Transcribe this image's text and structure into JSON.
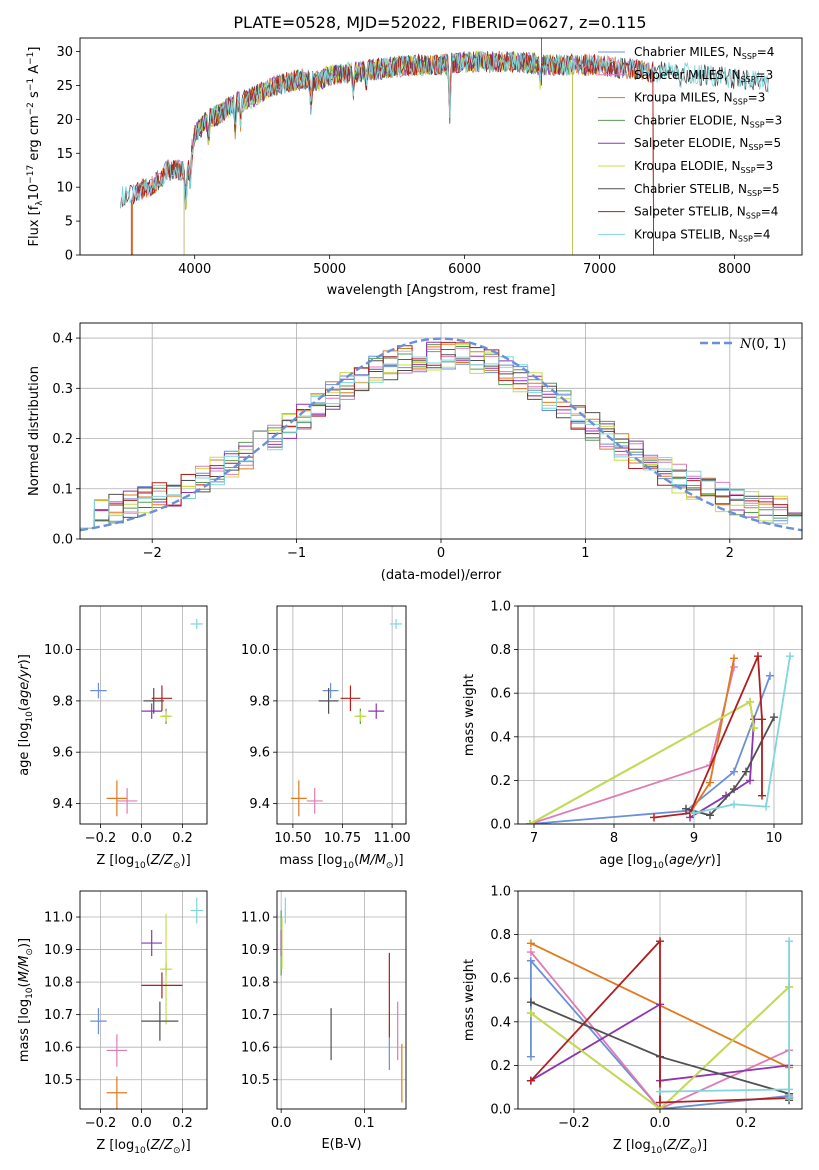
{
  "figure": {
    "title": "PLATE=0528, MJD=52022, FIBERID=0627, z=0.115"
  },
  "colors": {
    "Chabrier MILES": "#6b8fd8",
    "Salpeter MILES": "#e07cb4",
    "Kroupa MILES": "#e07a1e",
    "Chabrier ELODIE": "#5a9a5a",
    "Salpeter ELODIE": "#8e35b0",
    "Kroupa ELODIE": "#c8dc4a",
    "Chabrier STELIB": "#505050",
    "Salpeter STELIB": "#b01e1e",
    "Kroupa STELIB": "#7fd6dc",
    "normal": "#6b8fd8"
  },
  "chart_data": [
    {
      "id": "spectrum",
      "type": "line",
      "xlabel": "wavelength [Angstrom, rest frame]",
      "ylabel": "Flux [fλ10⁻¹⁷ erg cm⁻² s⁻¹ A⁻¹]",
      "xlim": [
        3150,
        8500
      ],
      "ylim": [
        0,
        32
      ],
      "xticks": [
        4000,
        5000,
        6000,
        7000,
        8000
      ],
      "yticks": [
        0,
        5,
        10,
        15,
        20,
        25,
        30
      ],
      "legend": "top-right",
      "legend_entries": [
        {
          "name": "Chabrier MILES, N",
          "sub": "SSP",
          "tail": "=4"
        },
        {
          "name": "Salpeter MILES, N",
          "sub": "SSP",
          "tail": "=3"
        },
        {
          "name": "Kroupa MILES, N",
          "sub": "SSP",
          "tail": "=3"
        },
        {
          "name": "Chabrier ELODIE, N",
          "sub": "SSP",
          "tail": "=3"
        },
        {
          "name": "Salpeter ELODIE, N",
          "sub": "SSP",
          "tail": "=5"
        },
        {
          "name": "Kroupa ELODIE, N",
          "sub": "SSP",
          "tail": "=3"
        },
        {
          "name": "Chabrier STELIB, N",
          "sub": "SSP",
          "tail": "=5"
        },
        {
          "name": "Salpeter STELIB, N",
          "sub": "SSP",
          "tail": "=4"
        },
        {
          "name": "Kroupa STELIB, N",
          "sub": "SSP",
          "tail": "=4"
        }
      ],
      "continuum": {
        "x": [
          3450,
          3600,
          3700,
          3800,
          3900,
          3950,
          4000,
          4100,
          4200,
          4300,
          4400,
          4500,
          4600,
          4700,
          4800,
          4900,
          5000,
          5200,
          5400,
          5600,
          5800,
          6000,
          6200,
          6400,
          6600,
          6800,
          7000,
          7200,
          7400,
          7600,
          7800,
          8000,
          8250
        ],
        "y": [
          8.5,
          9.5,
          10.5,
          12.5,
          12.5,
          12.0,
          18.0,
          20.0,
          21.0,
          22.5,
          23.0,
          24.0,
          25.0,
          25.5,
          26.0,
          25.5,
          26.5,
          27.0,
          27.5,
          28.0,
          28.0,
          28.5,
          28.5,
          28.5,
          28.0,
          28.0,
          28.0,
          27.5,
          27.0,
          27.0,
          26.5,
          26.0,
          25.5
        ]
      },
      "starts": {
        "Chabrier STELIB": 3450,
        "Kroupa STELIB": 3450,
        "Salpeter STELIB": 3530,
        "Kroupa ELODIE": 3920,
        "Chabrier MILES": 3540,
        "Salpeter MILES": 3540,
        "Kroupa MILES": 3540,
        "Chabrier ELODIE": 3920,
        "Salpeter ELODIE": 3920
      },
      "ends": {
        "Kroupa ELODIE": 6800,
        "Chabrier ELODIE": 6800,
        "Salpeter ELODIE": 6800,
        "Salpeter STELIB": 7400,
        "Kroupa MILES": 7400,
        "Chabrier MILES": 7400,
        "Salpeter MILES": 7400,
        "Chabrier STELIB": 8250,
        "Kroupa STELIB": 8250
      }
    },
    {
      "id": "residuals",
      "type": "bar",
      "xlabel": "(data-model)/error",
      "ylabel": "Normed distribution",
      "xlim": [
        -2.5,
        2.5
      ],
      "ylim": [
        0,
        0.43
      ],
      "xticks": [
        -2,
        -1,
        0,
        1,
        2
      ],
      "yticks": [
        0.0,
        0.1,
        0.2,
        0.3,
        0.4
      ],
      "grid": true,
      "bins": 50,
      "legend": "top-right",
      "normal_label": "N(0, 1)"
    },
    {
      "id": "age_vs_Z",
      "type": "scatter",
      "xlabel": "Z [log10(Z/Z⊙)]",
      "ylabel": "age [log10(age/yr)]",
      "xlim": [
        -0.3,
        0.32
      ],
      "ylim": [
        9.32,
        10.17
      ],
      "xticks": [
        -0.2,
        0.0,
        0.2
      ],
      "yticks": [
        9.4,
        9.6,
        9.8,
        10.0
      ],
      "grid": true,
      "points": [
        {
          "model": "Chabrier MILES",
          "x": -0.21,
          "xerr": 0.04,
          "y": 9.84,
          "yerr": 0.03
        },
        {
          "model": "Salpeter MILES",
          "x": -0.07,
          "xerr": 0.05,
          "y": 9.41,
          "yerr": 0.05
        },
        {
          "model": "Kroupa MILES",
          "x": -0.12,
          "xerr": 0.05,
          "y": 9.42,
          "yerr": 0.07
        },
        {
          "model": "Chabrier ELODIE",
          "x": 0.12,
          "xerr": 0.02,
          "y": 9.74,
          "yerr": 0.03
        },
        {
          "model": "Salpeter ELODIE",
          "x": 0.05,
          "xerr": 0.05,
          "y": 9.76,
          "yerr": 0.03
        },
        {
          "model": "Kroupa ELODIE",
          "x": 0.12,
          "xerr": 0.03,
          "y": 9.74,
          "yerr": 0.02
        },
        {
          "model": "Chabrier STELIB",
          "x": 0.06,
          "xerr": 0.05,
          "y": 9.8,
          "yerr": 0.05
        },
        {
          "model": "Salpeter STELIB",
          "x": 0.1,
          "xerr": 0.05,
          "y": 9.81,
          "yerr": 0.05
        },
        {
          "model": "Kroupa STELIB",
          "x": 0.27,
          "xerr": 0.03,
          "y": 10.1,
          "yerr": 0.02
        }
      ]
    },
    {
      "id": "age_vs_mass",
      "type": "scatter",
      "xlabel": "mass [log10(M/M⊙)]",
      "ylabel": "",
      "xlim": [
        10.42,
        11.07
      ],
      "ylim": [
        9.32,
        10.17
      ],
      "xticks": [
        10.5,
        10.75,
        11.0
      ],
      "yticks": [
        9.4,
        9.6,
        9.8,
        10.0
      ],
      "grid": true,
      "points": [
        {
          "model": "Chabrier MILES",
          "x": 10.69,
          "xerr": 0.04,
          "y": 9.84,
          "yerr": 0.03
        },
        {
          "model": "Salpeter MILES",
          "x": 10.61,
          "xerr": 0.04,
          "y": 9.41,
          "yerr": 0.05
        },
        {
          "model": "Kroupa MILES",
          "x": 10.53,
          "xerr": 0.04,
          "y": 9.42,
          "yerr": 0.07
        },
        {
          "model": "Chabrier ELODIE",
          "x": 10.84,
          "xerr": 0.02,
          "y": 9.74,
          "yerr": 0.03
        },
        {
          "model": "Salpeter ELODIE",
          "x": 10.92,
          "xerr": 0.04,
          "y": 9.76,
          "yerr": 0.03
        },
        {
          "model": "Kroupa ELODIE",
          "x": 10.84,
          "xerr": 0.03,
          "y": 9.74,
          "yerr": 0.02
        },
        {
          "model": "Chabrier STELIB",
          "x": 10.68,
          "xerr": 0.05,
          "y": 9.8,
          "yerr": 0.05
        },
        {
          "model": "Salpeter STELIB",
          "x": 10.79,
          "xerr": 0.05,
          "y": 9.81,
          "yerr": 0.05
        },
        {
          "model": "Kroupa STELIB",
          "x": 11.02,
          "xerr": 0.03,
          "y": 10.1,
          "yerr": 0.02
        }
      ]
    },
    {
      "id": "mass_weight_vs_age",
      "type": "line",
      "xlabel": "age [log10(age/yr)]",
      "ylabel": "mass weight",
      "xlim": [
        6.8,
        10.35
      ],
      "ylim": [
        0,
        1.0
      ],
      "xticks": [
        7,
        8,
        9,
        10
      ],
      "yticks": [
        0.0,
        0.2,
        0.4,
        0.6,
        0.8,
        1.0
      ],
      "grid": true,
      "series": [
        {
          "model": "Chabrier MILES",
          "x": [
            6.95,
            8.9,
            9.5,
            9.95
          ],
          "y": [
            0.0,
            0.06,
            0.24,
            0.68
          ]
        },
        {
          "model": "Salpeter MILES",
          "x": [
            6.95,
            9.2,
            9.5
          ],
          "y": [
            0.0,
            0.27,
            0.72
          ]
        },
        {
          "model": "Kroupa MILES",
          "x": [
            8.95,
            9.2,
            9.5
          ],
          "y": [
            0.05,
            0.19,
            0.76
          ]
        },
        {
          "model": "Chabrier ELODIE",
          "x": [
            6.95,
            9.7,
            9.75
          ],
          "y": [
            0.0,
            0.56,
            0.44
          ]
        },
        {
          "model": "Salpeter ELODIE",
          "x": [
            8.95,
            9.4,
            9.7,
            9.75
          ],
          "y": [
            0.03,
            0.13,
            0.2,
            0.48
          ]
        },
        {
          "model": "Kroupa ELODIE",
          "x": [
            6.95,
            9.7,
            9.75
          ],
          "y": [
            0.0,
            0.56,
            0.44
          ]
        },
        {
          "model": "Chabrier STELIB",
          "x": [
            8.9,
            9.2,
            9.5,
            9.65,
            10.0
          ],
          "y": [
            0.07,
            0.04,
            0.16,
            0.24,
            0.49
          ]
        },
        {
          "model": "Salpeter STELIB",
          "x": [
            8.5,
            8.95,
            9.8,
            9.85,
            9.85
          ],
          "y": [
            0.03,
            0.05,
            0.77,
            0.48,
            0.13
          ]
        },
        {
          "model": "Kroupa STELIB",
          "x": [
            9.0,
            9.5,
            9.9,
            10.2
          ],
          "y": [
            0.05,
            0.09,
            0.08,
            0.77
          ]
        }
      ]
    },
    {
      "id": "mass_vs_Z",
      "type": "scatter",
      "xlabel": "Z [log10(Z/Z⊙)]",
      "ylabel": "mass [log10(M/M⊙)]",
      "xlim": [
        -0.3,
        0.32
      ],
      "ylim": [
        10.41,
        11.08
      ],
      "xticks": [
        -0.2,
        0.0,
        0.2
      ],
      "yticks": [
        10.5,
        10.6,
        10.7,
        10.8,
        10.9,
        11.0
      ],
      "grid": true,
      "points": [
        {
          "model": "Chabrier MILES",
          "x": -0.21,
          "xerr": 0.04,
          "y": 10.68,
          "yerr": 0.04
        },
        {
          "model": "Salpeter MILES",
          "x": -0.12,
          "xerr": 0.05,
          "y": 10.59,
          "yerr": 0.05
        },
        {
          "model": "Kroupa MILES",
          "x": -0.12,
          "xerr": 0.05,
          "y": 10.46,
          "yerr": 0.05
        },
        {
          "model": "Chabrier ELODIE",
          "x": 0.12,
          "xerr": 0.02,
          "y": 10.84,
          "yerr": 0.02
        },
        {
          "model": "Salpeter ELODIE",
          "x": 0.05,
          "xerr": 0.05,
          "y": 10.92,
          "yerr": 0.04
        },
        {
          "model": "Kroupa ELODIE",
          "x": 0.12,
          "xerr": 0.03,
          "y": 10.84,
          "yerr": 0.17
        },
        {
          "model": "Chabrier STELIB",
          "x": 0.09,
          "xerr": 0.09,
          "y": 10.68,
          "yerr": 0.06
        },
        {
          "model": "Salpeter STELIB",
          "x": 0.1,
          "xerr": 0.1,
          "y": 10.79,
          "yerr": 0.04
        },
        {
          "model": "Kroupa STELIB",
          "x": 0.27,
          "xerr": 0.03,
          "y": 11.02,
          "yerr": 0.04
        }
      ]
    },
    {
      "id": "mass_vs_EBV",
      "type": "scatter",
      "xlabel": "E(B-V)",
      "ylabel": "",
      "xlim": [
        -0.005,
        0.15
      ],
      "ylim": [
        10.41,
        11.08
      ],
      "xticks": [
        0.0,
        0.1
      ],
      "yticks": [
        10.5,
        10.6,
        10.7,
        10.8,
        10.9,
        11.0
      ],
      "grid": true,
      "points": [
        {
          "model": "Chabrier MILES",
          "x": 0.13,
          "xerr": 0.0,
          "y": 10.58,
          "yerr": 0.05
        },
        {
          "model": "Salpeter MILES",
          "x": 0.14,
          "xerr": 0.0,
          "y": 10.65,
          "yerr": 0.09
        },
        {
          "model": "Kroupa MILES",
          "x": 0.145,
          "xerr": 0.0,
          "y": 10.52,
          "yerr": 0.09
        },
        {
          "model": "Chabrier ELODIE",
          "x": 0.0,
          "xerr": 0.0,
          "y": 10.92,
          "yerr": 0.1
        },
        {
          "model": "Salpeter ELODIE",
          "x": 0.0,
          "xerr": 0.0,
          "y": 10.92,
          "yerr": 0.04
        },
        {
          "model": "Kroupa ELODIE",
          "x": 0.001,
          "xerr": 0.0,
          "y": 10.92,
          "yerr": 0.08
        },
        {
          "model": "Chabrier STELIB",
          "x": 0.06,
          "xerr": 0.0,
          "y": 10.64,
          "yerr": 0.08
        },
        {
          "model": "Salpeter STELIB",
          "x": 0.13,
          "xerr": 0.0,
          "y": 10.76,
          "yerr": 0.13
        },
        {
          "model": "Kroupa STELIB",
          "x": 0.005,
          "xerr": 0.0,
          "y": 11.02,
          "yerr": 0.04
        }
      ]
    },
    {
      "id": "mass_weight_vs_Z",
      "type": "line",
      "xlabel": "Z [log10(Z/Z⊙)]",
      "ylabel": "mass weight",
      "xlim": [
        -0.33,
        0.33
      ],
      "ylim": [
        0,
        1.0
      ],
      "xticks": [
        -0.2,
        0.0,
        0.2
      ],
      "yticks": [
        0.0,
        0.2,
        0.4,
        0.6,
        0.8,
        1.0
      ],
      "grid": true,
      "series": [
        {
          "model": "Chabrier MILES",
          "x": [
            -0.3,
            -0.3,
            0.0,
            0.3
          ],
          "y": [
            0.24,
            0.68,
            0.0,
            0.06
          ]
        },
        {
          "model": "Salpeter MILES",
          "x": [
            -0.3,
            0.0,
            0.3
          ],
          "y": [
            0.72,
            0.0,
            0.27
          ]
        },
        {
          "model": "Kroupa MILES",
          "x": [
            -0.3,
            0.3,
            0.3
          ],
          "y": [
            0.76,
            0.19,
            0.05
          ]
        },
        {
          "model": "Chabrier ELODIE",
          "x": [
            -0.3,
            0.0,
            0.3
          ],
          "y": [
            0.44,
            0.0,
            0.56
          ]
        },
        {
          "model": "Salpeter ELODIE",
          "x": [
            -0.3,
            0.0,
            0.0,
            0.3
          ],
          "y": [
            0.13,
            0.48,
            0.13,
            0.2
          ]
        },
        {
          "model": "Kroupa ELODIE",
          "x": [
            -0.3,
            0.0,
            0.3
          ],
          "y": [
            0.44,
            0.0,
            0.56
          ]
        },
        {
          "model": "Chabrier STELIB",
          "x": [
            -0.3,
            0.0,
            0.3,
            0.3
          ],
          "y": [
            0.49,
            0.24,
            0.07,
            0.04
          ]
        },
        {
          "model": "Salpeter STELIB",
          "x": [
            -0.3,
            0.0,
            0.0,
            0.3,
            0.3
          ],
          "y": [
            0.13,
            0.77,
            0.03,
            0.05,
            0.05
          ]
        },
        {
          "model": "Kroupa STELIB",
          "x": [
            0.0,
            0.3,
            0.3,
            0.3
          ],
          "y": [
            0.08,
            0.09,
            0.77,
            0.05
          ]
        }
      ]
    }
  ]
}
